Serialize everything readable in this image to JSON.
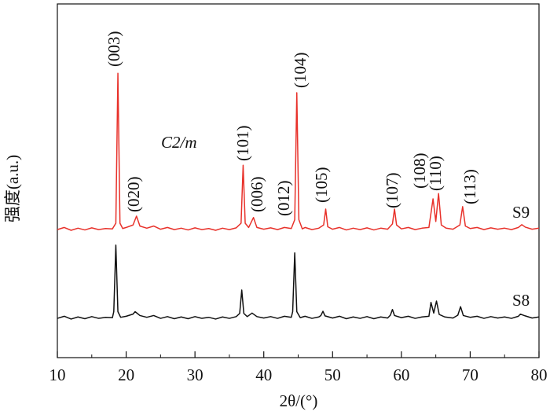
{
  "chart_data": {
    "type": "line",
    "x_label": "2θ/(°)",
    "y_label": "强度(a.u.)",
    "xlim": [
      10,
      80
    ],
    "ylim": [
      0,
      100
    ],
    "xticks": [
      10,
      20,
      30,
      40,
      50,
      60,
      70,
      80
    ],
    "x_minor_ticks": [
      15,
      25,
      35,
      45,
      55,
      65,
      75
    ],
    "annotations": [
      "(003)",
      "(020)",
      "C2/m",
      "(101)",
      "(006)",
      "(012)",
      "(104)",
      "(105)",
      "(107)",
      "(108)",
      "(110)",
      "(113)"
    ],
    "series": [
      {
        "name": "S9",
        "color": "#e8312a",
        "x": [
          10,
          11,
          12,
          13,
          14,
          15,
          16,
          17,
          18,
          18.5,
          18.8,
          19.1,
          19.5,
          20,
          21,
          21.5,
          22,
          23,
          24,
          25,
          26,
          27,
          28,
          29,
          30,
          31,
          32,
          33,
          34,
          35,
          36,
          36.7,
          37.0,
          37.3,
          37.8,
          38.5,
          39,
          40,
          41,
          42,
          43,
          44,
          44.5,
          44.8,
          45.1,
          45.6,
          46,
          47,
          48,
          48.7,
          49.0,
          49.3,
          50,
          51,
          52,
          53,
          54,
          55,
          56,
          57,
          58,
          58.7,
          59.0,
          59.3,
          60,
          61,
          62,
          63,
          64,
          64.6,
          65.0,
          65.4,
          65.8,
          66.5,
          67.5,
          68.5,
          68.9,
          69.3,
          70,
          71,
          72,
          73,
          74,
          75,
          76,
          77,
          77.5,
          78,
          79,
          80
        ],
        "values": [
          36.2,
          36.8,
          36.0,
          36.6,
          36.1,
          36.7,
          36.2,
          36.5,
          36.4,
          38,
          80.4,
          38,
          36.5,
          36.8,
          37.5,
          40,
          37.2,
          36.6,
          37.2,
          36.3,
          36.8,
          36.2,
          36.6,
          36.1,
          36.7,
          36.2,
          36.5,
          36.0,
          36.6,
          36.2,
          36.7,
          38,
          54.4,
          38,
          36.8,
          39.6,
          36.8,
          36.3,
          36.7,
          36.2,
          36.8,
          36.5,
          39,
          74.9,
          39,
          36.4,
          36.8,
          36.2,
          36.6,
          37.5,
          42,
          37,
          36.3,
          36.8,
          36.1,
          36.6,
          36.2,
          36.7,
          36.1,
          36.6,
          36.3,
          37.8,
          42,
          37.5,
          36.4,
          36.8,
          36.2,
          36.6,
          36.8,
          44.9,
          38.5,
          46.4,
          37.5,
          36.6,
          36.3,
          37.5,
          42.7,
          37.2,
          36.5,
          36.8,
          36.2,
          36.7,
          36.3,
          36.6,
          36.2,
          36.8,
          37.6,
          36.9,
          36.3,
          36.6
        ]
      },
      {
        "name": "S8",
        "color": "#111111",
        "x": [
          10,
          11,
          12,
          13,
          14,
          15,
          16,
          17,
          18,
          18.2,
          18.5,
          18.8,
          19.2,
          20,
          21,
          21.3,
          22,
          23,
          24,
          25,
          26,
          27,
          28,
          29,
          30,
          31,
          32,
          33,
          34,
          35,
          36,
          36.5,
          36.8,
          37.1,
          37.6,
          38.3,
          39,
          40,
          41,
          42,
          43,
          44,
          44.2,
          44.5,
          44.8,
          45.3,
          46,
          47,
          48,
          48.3,
          48.6,
          48.9,
          50,
          51,
          52,
          53,
          54,
          55,
          56,
          57,
          58,
          58.4,
          58.7,
          59.0,
          60,
          61,
          62,
          63,
          64,
          64.3,
          64.7,
          65.1,
          65.5,
          66.3,
          67.5,
          68.2,
          68.6,
          69.0,
          70,
          71,
          72,
          73,
          74,
          75,
          76,
          77,
          77.3,
          78,
          79,
          80
        ],
        "values": [
          11.1,
          11.7,
          10.9,
          11.5,
          11.0,
          11.6,
          11.1,
          11.4,
          11.3,
          13,
          31.8,
          13,
          11.4,
          11.7,
          12.3,
          13,
          11.9,
          11.4,
          11.9,
          11.1,
          11.6,
          11.0,
          11.5,
          11.0,
          11.6,
          11.1,
          11.4,
          10.9,
          11.5,
          11.1,
          11.6,
          12.5,
          19.1,
          12.5,
          11.6,
          12.6,
          11.6,
          11.2,
          11.6,
          11.1,
          11.7,
          11.4,
          13,
          29.6,
          13,
          11.3,
          11.7,
          11.1,
          11.5,
          11.9,
          13.1,
          11.8,
          11.2,
          11.7,
          11.0,
          11.5,
          11.1,
          11.6,
          11.0,
          11.5,
          11.2,
          12,
          13.6,
          11.9,
          11.3,
          11.7,
          11.1,
          11.5,
          11.7,
          15.6,
          12.6,
          16,
          12.2,
          11.5,
          11.2,
          12,
          14.4,
          11.9,
          11.4,
          11.7,
          11.1,
          11.6,
          11.2,
          11.5,
          11.1,
          11.7,
          12.3,
          11.8,
          11.2,
          11.5
        ]
      }
    ]
  }
}
